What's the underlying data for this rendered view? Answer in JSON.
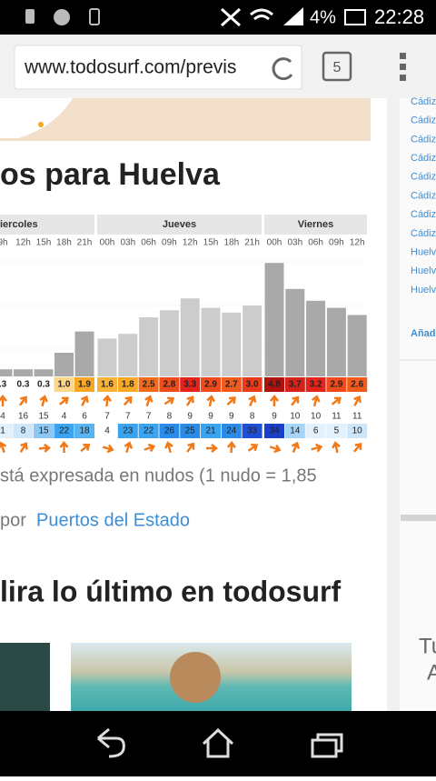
{
  "status_bar": {
    "battery": "4%",
    "time": "22:28"
  },
  "browser": {
    "url": "www.todosurf.com/previs",
    "tabs": "5"
  },
  "heading": "os para Huelva",
  "forecast": {
    "days": [
      "iercoles",
      "Jueves",
      "Viernes"
    ],
    "hours": [
      "9h",
      "12h",
      "15h",
      "18h",
      "21h",
      "00h",
      "03h",
      "06h",
      "09h",
      "12h",
      "15h",
      "18h",
      "21h",
      "00h",
      "03h",
      "06h",
      "09h",
      "12h"
    ],
    "wave_height": {
      "values": [
        0.3,
        0.3,
        0.3,
        1.0,
        1.9,
        1.6,
        1.8,
        2.5,
        2.8,
        3.3,
        2.9,
        2.7,
        3.0,
        4.8,
        3.7,
        3.2,
        2.9,
        2.6
      ],
      "value_labels": [
        ".3",
        "0.3",
        "0.3",
        "1.0",
        "1.9",
        "1.6",
        "1.8",
        "2.5",
        "2.8",
        "3.3",
        "2.9",
        "2.7",
        "3.0",
        "4.8",
        "3.7",
        "3.2",
        "2.9",
        "2.6"
      ],
      "colors": [
        "#ffffff",
        "#ffffff",
        "#ffffff",
        "#fcd68a",
        "#f9a825",
        "#f9b437",
        "#f9a825",
        "#f26a1b",
        "#ef4a1a",
        "#e5231b",
        "#ef4a1a",
        "#f05a1b",
        "#eb3a1a",
        "#b0120e",
        "#d6211b",
        "#e5231b",
        "#ef4a1a",
        "#f05a1b"
      ]
    },
    "period": [
      4,
      16,
      15,
      4,
      6,
      7,
      7,
      7,
      8,
      9,
      9,
      9,
      8,
      9,
      10,
      10,
      11,
      11
    ],
    "wind_speed": {
      "values": [
        1,
        8,
        15,
        22,
        18,
        4,
        23,
        22,
        26,
        25,
        21,
        24,
        33,
        34,
        14,
        6,
        5,
        10
      ],
      "colors": [
        "#e3f1fc",
        "#cde6fa",
        "#8dc8f5",
        "#3ba4f0",
        "#5ab4f2",
        "#ffffff",
        "#3ba4f0",
        "#3ba4f0",
        "#2a8be8",
        "#2a8be8",
        "#3ba4f0",
        "#2a8be8",
        "#1f4fd6",
        "#1a3fc8",
        "#a6d4f7",
        "#e3f1fc",
        "#e3f1fc",
        "#cde6fa"
      ]
    }
  },
  "note": "stá expresada en nudos (1 nudo = 1,85",
  "source": {
    "prefix": "por",
    "link": "Puertos del Estado"
  },
  "section_title": "lira lo último en todosurf",
  "sidebar": {
    "links": [
      "Cádiz",
      "Cádiz",
      "Cádiz",
      "Cádiz",
      "Cádiz",
      "Cádiz",
      "Cádiz",
      "Cádiz",
      "Huelv",
      "Huelv",
      "Huelv"
    ],
    "add": "Añad",
    "text": [
      "Tu",
      "A"
    ]
  }
}
